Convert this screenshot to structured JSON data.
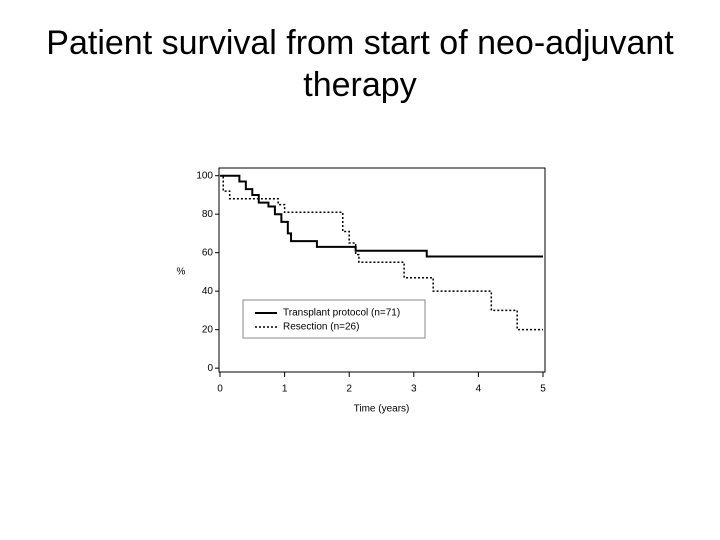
{
  "chart_data": {
    "type": "line",
    "step": true,
    "title": "Patient survival from start of neo-adjuvant therapy",
    "x_label": "Time (years)",
    "y_label": "%",
    "xlim": [
      0,
      5
    ],
    "ylim": [
      -2,
      104
    ],
    "xticks": [
      0,
      1,
      2,
      3,
      4,
      5
    ],
    "yticks": [
      0,
      20,
      40,
      60,
      80,
      100
    ],
    "legend_position": "lower left",
    "series": [
      {
        "name": "Transplant protocol (n=71)",
        "color": "#000000",
        "dash": "solid",
        "x": [
          0,
          0.3,
          0.4,
          0.5,
          0.6,
          0.75,
          0.85,
          0.95,
          1.05,
          1.1,
          1.5,
          2.1,
          3.2,
          5
        ],
        "values": [
          100,
          97,
          93,
          90,
          86,
          84,
          80,
          76,
          70,
          66,
          63,
          61,
          58,
          58
        ]
      },
      {
        "name": "Resection (n=26)",
        "color": "#000000",
        "dash": "dotted",
        "x": [
          0,
          0.05,
          0.15,
          0.9,
          1.0,
          1.9,
          2.0,
          2.1,
          2.15,
          2.85,
          3.3,
          4.2,
          4.6,
          5
        ],
        "values": [
          100,
          92,
          88,
          85,
          81,
          71,
          65,
          59,
          55,
          47,
          40,
          30,
          20,
          20
        ]
      }
    ]
  }
}
